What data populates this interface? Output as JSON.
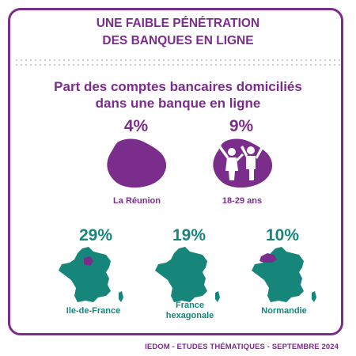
{
  "header": {
    "title_line1": "UNE FAIBLE PÉNÉTRATION",
    "title_line2": "DES BANQUES EN LIGNE"
  },
  "subtitle": {
    "line1": "Part des comptes bancaires domiciliés",
    "line2": "dans une banque en ligne"
  },
  "stats": [
    {
      "value": "4%",
      "label": "La Réunion",
      "icon": "reunion-island-icon",
      "color": "#7b2d8b"
    },
    {
      "value": "9%",
      "label": "18-29 ans",
      "icon": "youth-people-icon",
      "color": "#7b2d8b"
    },
    {
      "value": "29%",
      "label": "Ile-de-France",
      "icon": "france-map-icon",
      "color": "#16867a"
    },
    {
      "value": "19%",
      "label_line1": "France",
      "label_line2": "hexagonale",
      "icon": "france-map-icon",
      "color": "#16867a"
    },
    {
      "value": "10%",
      "label": "Normandie",
      "icon": "france-map-icon",
      "color": "#16867a"
    }
  ],
  "footer": {
    "text": "IEDOM - ETUDES THÉMATIQUES - SEPTEMBRE 2024"
  }
}
